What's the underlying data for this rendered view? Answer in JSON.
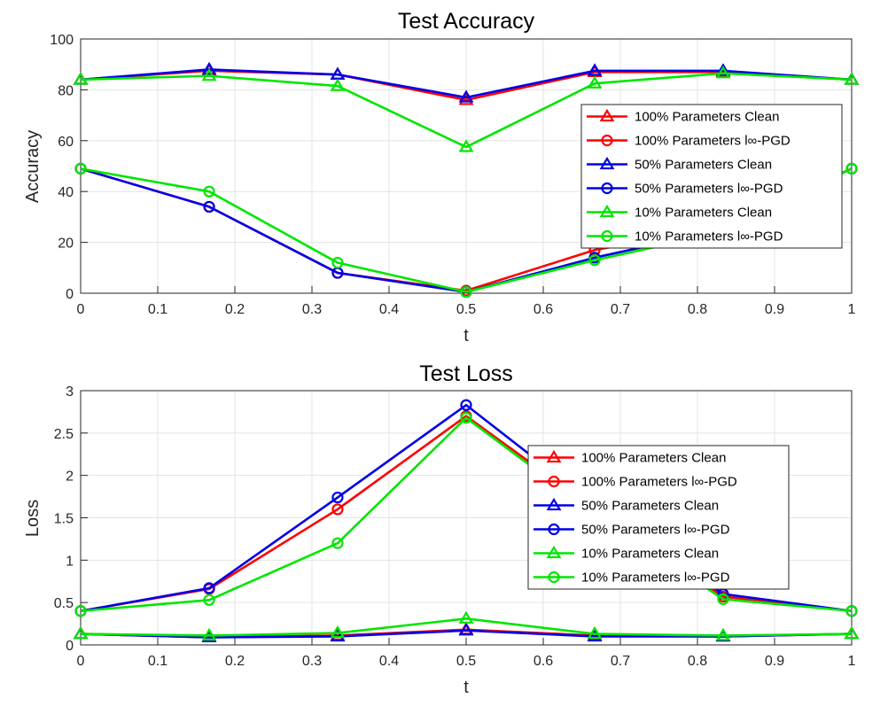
{
  "colors": {
    "red": "#ff0000",
    "blue": "#0000e6",
    "green": "#00e600"
  },
  "chart_data": [
    {
      "type": "line",
      "title": "Test Accuracy",
      "xlabel": "t",
      "ylabel": "Accuracy",
      "xlim": [
        0,
        1
      ],
      "ylim": [
        0,
        100
      ],
      "xticks": [
        0,
        0.1,
        0.2,
        0.3,
        0.4,
        0.5,
        0.6,
        0.7,
        0.8,
        0.9,
        1
      ],
      "yticks": [
        0,
        20,
        40,
        60,
        80,
        100
      ],
      "grid": true,
      "legend_position": "right",
      "x": [
        0,
        0.1667,
        0.3333,
        0.5,
        0.6667,
        0.8333,
        1
      ],
      "series": [
        {
          "name": "100% Parameters Clean",
          "color": "red",
          "marker": "triangle",
          "values": [
            84,
            87.5,
            86,
            76,
            87,
            87,
            84
          ]
        },
        {
          "name": "100% Parameters l∞-PGD",
          "color": "red",
          "marker": "circle",
          "values": [
            49,
            34,
            8,
            1,
            17,
            26,
            49
          ]
        },
        {
          "name": "50% Parameters Clean",
          "color": "blue",
          "marker": "triangle",
          "values": [
            84,
            88,
            86,
            77,
            87.5,
            87.5,
            84
          ]
        },
        {
          "name": "50% Parameters l∞-PGD",
          "color": "blue",
          "marker": "circle",
          "values": [
            49,
            34,
            8,
            0.5,
            14,
            25,
            49
          ]
        },
        {
          "name": "10% Parameters Clean",
          "color": "green",
          "marker": "triangle",
          "values": [
            84,
            85.5,
            81.5,
            57.5,
            82.5,
            86.5,
            84
          ]
        },
        {
          "name": "10% Parameters l∞-PGD",
          "color": "green",
          "marker": "circle",
          "values": [
            49,
            40,
            12,
            0.5,
            13,
            24,
            49
          ]
        }
      ]
    },
    {
      "type": "line",
      "title": "Test Loss",
      "xlabel": "t",
      "ylabel": "Loss",
      "xlim": [
        0,
        1
      ],
      "ylim": [
        0,
        3
      ],
      "xticks": [
        0,
        0.1,
        0.2,
        0.3,
        0.4,
        0.5,
        0.6,
        0.7,
        0.8,
        0.9,
        1
      ],
      "yticks": [
        0,
        0.5,
        1,
        1.5,
        2,
        2.5,
        3
      ],
      "grid": true,
      "legend_position": "right",
      "x": [
        0,
        0.1667,
        0.3333,
        0.5,
        0.6667,
        0.8333,
        1
      ],
      "series": [
        {
          "name": "100% Parameters Clean",
          "color": "red",
          "marker": "triangle",
          "values": [
            0.13,
            0.09,
            0.11,
            0.18,
            0.11,
            0.1,
            0.13
          ]
        },
        {
          "name": "100% Parameters l∞-PGD",
          "color": "red",
          "marker": "circle",
          "values": [
            0.4,
            0.66,
            1.6,
            2.7,
            1.6,
            0.57,
            0.4
          ]
        },
        {
          "name": "50% Parameters Clean",
          "color": "blue",
          "marker": "triangle",
          "values": [
            0.13,
            0.09,
            0.1,
            0.17,
            0.1,
            0.1,
            0.13
          ]
        },
        {
          "name": "50% Parameters l∞-PGD",
          "color": "blue",
          "marker": "circle",
          "values": [
            0.4,
            0.67,
            1.74,
            2.83,
            1.65,
            0.6,
            0.4
          ]
        },
        {
          "name": "10% Parameters Clean",
          "color": "green",
          "marker": "triangle",
          "values": [
            0.13,
            0.11,
            0.14,
            0.31,
            0.13,
            0.11,
            0.13
          ]
        },
        {
          "name": "10% Parameters l∞-PGD",
          "color": "green",
          "marker": "circle",
          "values": [
            0.4,
            0.53,
            1.2,
            2.68,
            1.55,
            0.54,
            0.4
          ]
        }
      ]
    }
  ]
}
